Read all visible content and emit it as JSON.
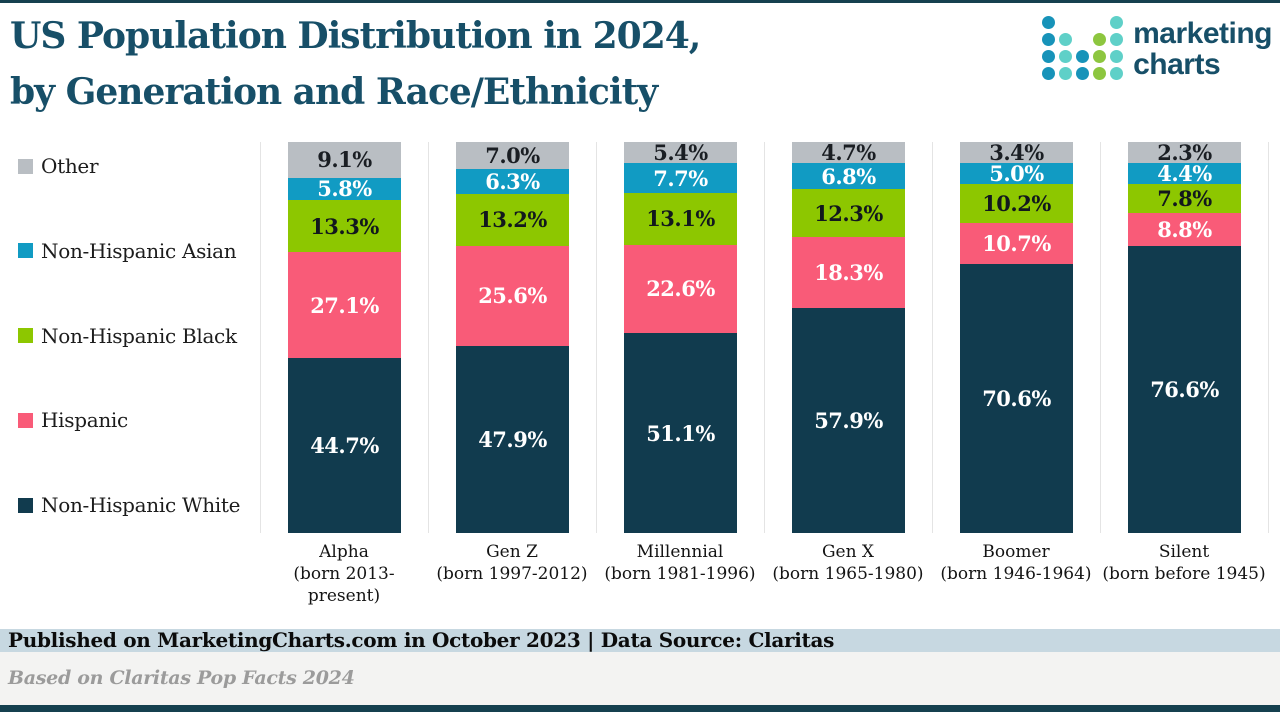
{
  "header": {
    "title_line1": "US Population Distribution in 2024,",
    "title_line2": "by Generation and Race/Ethnicity"
  },
  "logo": {
    "text_line1": "marketing",
    "text_line2": "charts",
    "colors": {
      "b": "#1793B9",
      "t": "#5FD0C8",
      "g": "#8DC63F"
    },
    "dot_pattern": [
      [
        "b",
        null,
        null,
        null,
        "t"
      ],
      [
        "b",
        "t",
        null,
        "g",
        "t"
      ],
      [
        "b",
        "t",
        "b",
        "g",
        "t"
      ],
      [
        "b",
        "t",
        "b",
        "g",
        "t"
      ]
    ]
  },
  "colors": {
    "rule": "#15404F",
    "title": "#174F68",
    "sep": "#E4E4E4",
    "band": "#C7D8E1",
    "graybar": "#F3F3F2"
  },
  "chart_data": {
    "type": "bar",
    "stacked": true,
    "unit": "%",
    "title": "US Population Distribution in 2024, by Generation and Race/Ethnicity",
    "xlabel": "",
    "ylabel": "",
    "ylim": [
      0,
      100
    ],
    "grid": "column-separators-only",
    "legend_position": "left",
    "stack_order_note": "series listed top-to-bottom as stacked in each bar",
    "categories": [
      "Alpha",
      "Gen Z",
      "Millennial",
      "Gen X",
      "Boomer",
      "Silent"
    ],
    "category_sublabels": [
      "(born 2013-present)",
      "(born 1997-2012)",
      "(born 1981-1996)",
      "(born 1965-1980)",
      "(born 1946-1964)",
      "(born before 1945)"
    ],
    "series": [
      {
        "name": "Other",
        "color": "#B9BEC3",
        "label_color": "#1A1E23",
        "values": [
          9.1,
          7.0,
          5.4,
          4.7,
          3.4,
          2.3
        ]
      },
      {
        "name": "Non-Hispanic Asian",
        "color": "#119BC3",
        "label_color": "#FFFFFF",
        "values": [
          5.8,
          6.3,
          7.7,
          6.8,
          5.0,
          4.4
        ]
      },
      {
        "name": "Non-Hispanic Black",
        "color": "#8DC700",
        "label_color": "#12181D",
        "values": [
          13.3,
          13.2,
          13.1,
          12.3,
          10.2,
          7.8
        ]
      },
      {
        "name": "Hispanic",
        "color": "#F95B78",
        "label_color": "#FFFFFF",
        "values": [
          27.1,
          25.6,
          22.6,
          18.3,
          10.7,
          8.8
        ]
      },
      {
        "name": "Non-Hispanic White",
        "color": "#113B4E",
        "label_color": "#FFFFFF",
        "values": [
          44.7,
          47.9,
          51.1,
          57.9,
          70.6,
          76.6
        ]
      }
    ]
  },
  "footer": {
    "published_line": "Published on MarketingCharts.com in October 2023 | Data Source: Claritas",
    "based_line": "Based on Claritas Pop Facts 2024"
  }
}
